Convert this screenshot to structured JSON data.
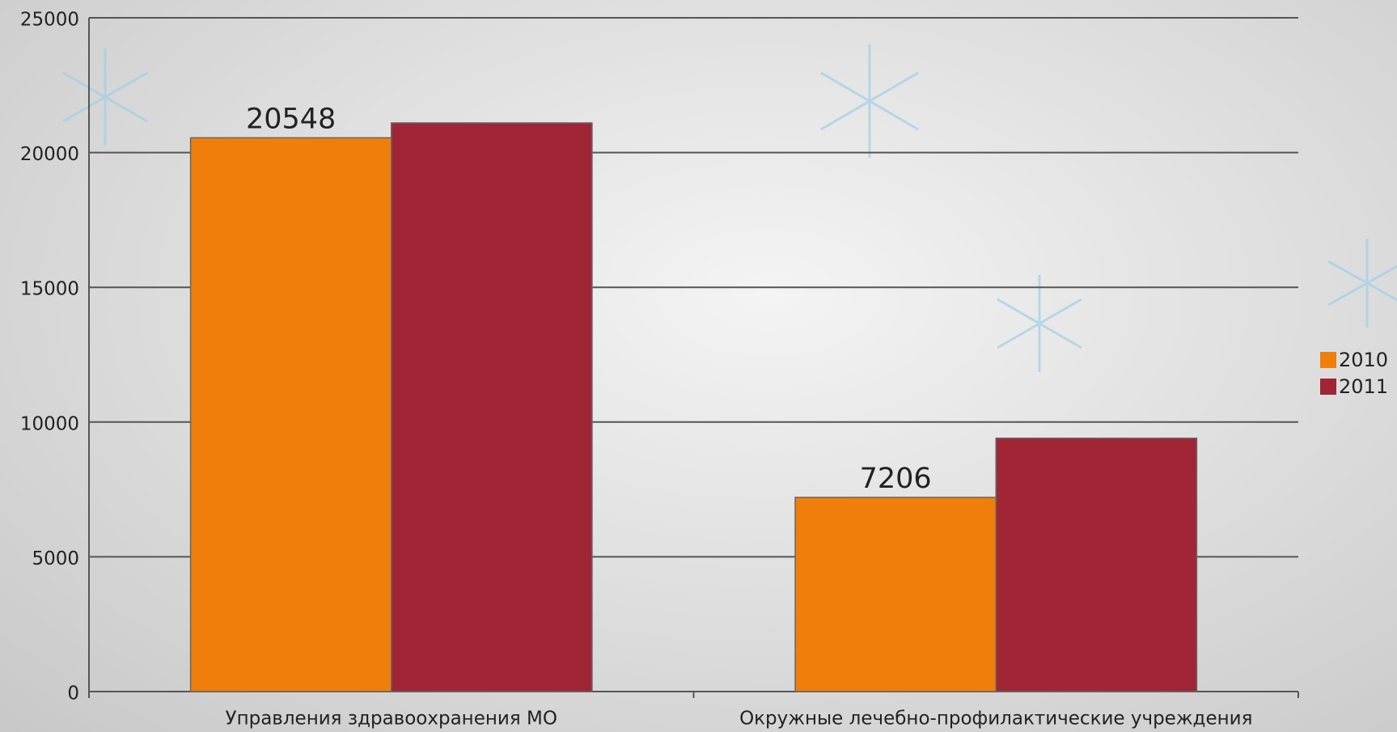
{
  "chart_data": {
    "type": "bar",
    "categories": [
      "Управления здравоохранения МО",
      "Окружные лечебно-профилактические учреждения"
    ],
    "series": [
      {
        "name": "2010",
        "color": "#ef7f0a",
        "values": [
          20548,
          7206
        ]
      },
      {
        "name": "2011",
        "color": "#a02535",
        "values": [
          21100,
          9400
        ]
      }
    ],
    "ylim": [
      0,
      25000
    ],
    "yticks": [
      0,
      5000,
      10000,
      15000,
      20000,
      25000
    ],
    "grid": true,
    "legend": "right"
  }
}
